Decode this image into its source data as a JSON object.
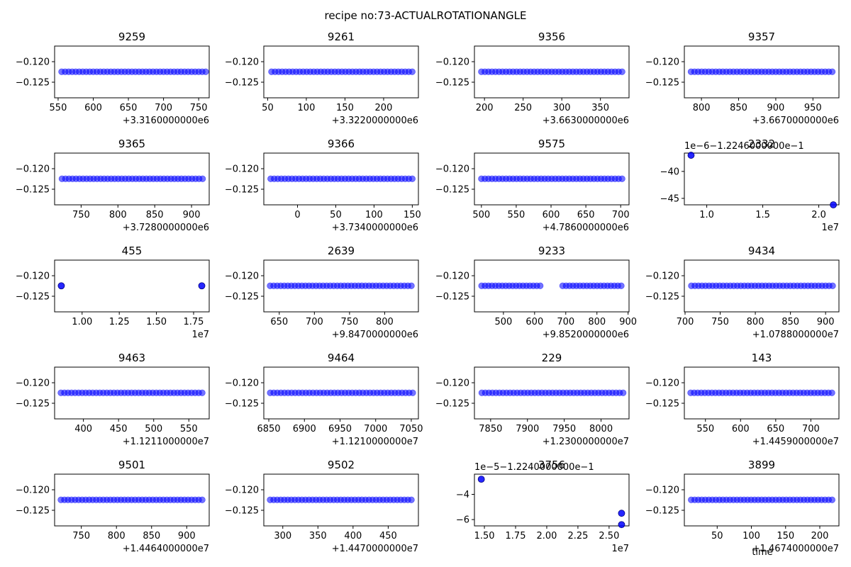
{
  "figure": {
    "title": "recipe no:73-ACTUALROTATIONANGLE",
    "marker_color": "#0000ff",
    "xlabel": "time"
  },
  "chart_data": [
    {
      "type": "scatter",
      "title": "9259",
      "x_offset": "+3.3160000000e6",
      "y_offset": "",
      "xticks": [
        550,
        600,
        650,
        700,
        750
      ],
      "xtick_labels": [
        "550",
        "600",
        "650",
        "700",
        "750"
      ],
      "xlim": [
        545,
        765
      ],
      "yticks": [
        -0.12,
        -0.125
      ],
      "ytick_labels": [
        "−0.120",
        "−0.125"
      ],
      "ylim": [
        -0.1288,
        -0.1162
      ],
      "segments": [
        [
          555,
          760
        ]
      ],
      "y": -0.12246,
      "points": []
    },
    {
      "type": "scatter",
      "title": "9261",
      "x_offset": "+3.3220000000e6",
      "xticks": [
        50,
        100,
        150,
        200
      ],
      "xtick_labels": [
        "50",
        "100",
        "150",
        "200"
      ],
      "xlim": [
        45,
        245
      ],
      "yticks": [
        -0.12,
        -0.125
      ],
      "ytick_labels": [
        "−0.120",
        "−0.125"
      ],
      "ylim": [
        -0.1288,
        -0.1162
      ],
      "segments": [
        [
          55,
          237
        ]
      ],
      "y": -0.12246,
      "points": []
    },
    {
      "type": "scatter",
      "title": "9356",
      "x_offset": "+3.6630000000e6",
      "xticks": [
        200,
        250,
        300,
        350
      ],
      "xtick_labels": [
        "200",
        "250",
        "300",
        "350"
      ],
      "xlim": [
        187,
        387
      ],
      "yticks": [
        -0.12,
        -0.125
      ],
      "ytick_labels": [
        "−0.120",
        "−0.125"
      ],
      "ylim": [
        -0.1288,
        -0.1162
      ],
      "segments": [
        [
          196,
          378
        ]
      ],
      "y": -0.12246,
      "points": []
    },
    {
      "type": "scatter",
      "title": "9357",
      "x_offset": "+3.6670000000e6",
      "xticks": [
        800,
        850,
        900,
        950
      ],
      "xtick_labels": [
        "800",
        "850",
        "900",
        "950"
      ],
      "xlim": [
        777,
        985
      ],
      "yticks": [
        -0.12,
        -0.125
      ],
      "ytick_labels": [
        "−0.120",
        "−0.125"
      ],
      "ylim": [
        -0.1288,
        -0.1162
      ],
      "segments": [
        [
          786,
          976
        ]
      ],
      "y": -0.12246,
      "points": []
    },
    {
      "type": "scatter",
      "title": "9365",
      "x_offset": "+3.7280000000e6",
      "xticks": [
        750,
        800,
        850,
        900
      ],
      "xtick_labels": [
        "750",
        "800",
        "850",
        "900"
      ],
      "xlim": [
        714,
        924
      ],
      "yticks": [
        -0.12,
        -0.125
      ],
      "ytick_labels": [
        "−0.120",
        "−0.125"
      ],
      "ylim": [
        -0.1288,
        -0.1162
      ],
      "segments": [
        [
          724,
          915
        ]
      ],
      "y": -0.12246,
      "points": []
    },
    {
      "type": "scatter",
      "title": "9366",
      "x_offset": "+3.7340000000e6",
      "xticks": [
        0,
        50,
        100,
        150
      ],
      "xtick_labels": [
        "0",
        "50",
        "100",
        "150"
      ],
      "xlim": [
        -44,
        158
      ],
      "yticks": [
        -0.12,
        -0.125
      ],
      "ytick_labels": [
        "−0.120",
        "−0.125"
      ],
      "ylim": [
        -0.1288,
        -0.1162
      ],
      "segments": [
        [
          -35,
          150
        ]
      ],
      "y": -0.12246,
      "points": []
    },
    {
      "type": "scatter",
      "title": "9575",
      "x_offset": "+4.7860000000e6",
      "xticks": [
        500,
        550,
        600,
        650,
        700
      ],
      "xtick_labels": [
        "500",
        "550",
        "600",
        "650",
        "700"
      ],
      "xlim": [
        490,
        712
      ],
      "yticks": [
        -0.12,
        -0.125
      ],
      "ytick_labels": [
        "−0.120",
        "−0.125"
      ],
      "ylim": [
        -0.1288,
        -0.1162
      ],
      "segments": [
        [
          500,
          702
        ]
      ],
      "y": -0.12246,
      "points": []
    },
    {
      "type": "scatter",
      "title": "2332",
      "x_offset": "1e7",
      "y_offset": "1e−6−1.2246000000e−1",
      "xticks": [
        1.0,
        1.5,
        2.0
      ],
      "xtick_labels": [
        "1.0",
        "1.5",
        "2.0"
      ],
      "xlim": [
        0.8,
        2.18
      ],
      "yticks": [
        -40,
        -45
      ],
      "ytick_labels": [
        "−40",
        "−45"
      ],
      "ylim": [
        -46.2,
        -36.6
      ],
      "segments": [],
      "points": [
        [
          0.86,
          -37.0
        ],
        [
          2.13,
          -46.2
        ]
      ]
    },
    {
      "type": "scatter",
      "title": "455",
      "x_offset": "1e7",
      "xticks": [
        1.0,
        1.25,
        1.5,
        1.75
      ],
      "xtick_labels": [
        "1.00",
        "1.25",
        "1.50",
        "1.75"
      ],
      "xlim": [
        0.815,
        1.855
      ],
      "yticks": [
        -0.12,
        -0.125
      ],
      "ytick_labels": [
        "−0.120",
        "−0.125"
      ],
      "ylim": [
        -0.1288,
        -0.1162
      ],
      "segments": [],
      "y": -0.12246,
      "points": [
        [
          0.86,
          -0.12246
        ],
        [
          1.805,
          -0.12246
        ]
      ]
    },
    {
      "type": "scatter",
      "title": "2639",
      "x_offset": "+9.8470000000e6",
      "xticks": [
        650,
        700,
        750,
        800
      ],
      "xtick_labels": [
        "650",
        "700",
        "750",
        "800"
      ],
      "xlim": [
        628,
        848
      ],
      "yticks": [
        -0.12,
        -0.125
      ],
      "ytick_labels": [
        "−0.120",
        "−0.125"
      ],
      "ylim": [
        -0.1288,
        -0.1162
      ],
      "segments": [
        [
          637,
          838
        ]
      ],
      "y": -0.12246,
      "points": []
    },
    {
      "type": "scatter",
      "title": "9233",
      "x_offset": "+9.8520000000e6",
      "xticks": [
        500,
        600,
        700,
        800,
        900
      ],
      "xtick_labels": [
        "500",
        "600",
        "700",
        "800",
        "900"
      ],
      "xlim": [
        407,
        903
      ],
      "yticks": [
        -0.12,
        -0.125
      ],
      "ytick_labels": [
        "−0.120",
        "−0.125"
      ],
      "ylim": [
        -0.1288,
        -0.1162
      ],
      "segments": [
        [
          430,
          618
        ],
        [
          690,
          878
        ]
      ],
      "y": -0.12246,
      "points": []
    },
    {
      "type": "scatter",
      "title": "9434",
      "x_offset": "+1.0788000000e7",
      "xticks": [
        700,
        750,
        800,
        850,
        900
      ],
      "xtick_labels": [
        "700",
        "750",
        "800",
        "850",
        "900"
      ],
      "xlim": [
        699,
        919
      ],
      "yticks": [
        -0.12,
        -0.125
      ],
      "ytick_labels": [
        "−0.120",
        "−0.125"
      ],
      "ylim": [
        -0.1288,
        -0.1162
      ],
      "segments": [
        [
          709,
          910
        ]
      ],
      "y": -0.12246,
      "points": []
    },
    {
      "type": "scatter",
      "title": "9463",
      "x_offset": "+1.1211000000e7",
      "xticks": [
        400,
        450,
        500,
        550
      ],
      "xtick_labels": [
        "400",
        "450",
        "500",
        "550"
      ],
      "xlim": [
        359,
        579
      ],
      "yticks": [
        -0.12,
        -0.125
      ],
      "ytick_labels": [
        "−0.120",
        "−0.125"
      ],
      "ylim": [
        -0.1288,
        -0.1162
      ],
      "segments": [
        [
          368,
          569
        ]
      ],
      "y": -0.12246,
      "points": []
    },
    {
      "type": "scatter",
      "title": "9464",
      "x_offset": "+1.1210000000e7",
      "xticks": [
        6850,
        6900,
        6950,
        7000,
        7050
      ],
      "xtick_labels": [
        "6850",
        "6900",
        "6950",
        "7000",
        "7050"
      ],
      "xlim": [
        6843,
        7060
      ],
      "yticks": [
        -0.12,
        -0.125
      ],
      "ytick_labels": [
        "−0.120",
        "−0.125"
      ],
      "ylim": [
        -0.1288,
        -0.1162
      ],
      "segments": [
        [
          6852,
          7052
        ]
      ],
      "y": -0.12246,
      "points": []
    },
    {
      "type": "scatter",
      "title": "229",
      "x_offset": "+1.2300000000e7",
      "xticks": [
        7850,
        7900,
        7950,
        8000
      ],
      "xtick_labels": [
        "7850",
        "7900",
        "7950",
        "8000"
      ],
      "xlim": [
        7828,
        8038
      ],
      "yticks": [
        -0.12,
        -0.125
      ],
      "ytick_labels": [
        "−0.120",
        "−0.125"
      ],
      "ylim": [
        -0.1288,
        -0.1162
      ],
      "segments": [
        [
          7838,
          8030
        ]
      ],
      "y": -0.12246,
      "points": []
    },
    {
      "type": "scatter",
      "title": "143",
      "x_offset": "+1.4459000000e7",
      "xticks": [
        550,
        600,
        650,
        700
      ],
      "xtick_labels": [
        "550",
        "600",
        "650",
        "700"
      ],
      "xlim": [
        520,
        740
      ],
      "yticks": [
        -0.12,
        -0.125
      ],
      "ytick_labels": [
        "−0.120",
        "−0.125"
      ],
      "ylim": [
        -0.1288,
        -0.1162
      ],
      "segments": [
        [
          529,
          730
        ]
      ],
      "y": -0.12246,
      "points": []
    },
    {
      "type": "scatter",
      "title": "9501",
      "x_offset": "+1.4464000000e7",
      "xticks": [
        750,
        800,
        850,
        900
      ],
      "xtick_labels": [
        "750",
        "800",
        "850",
        "900"
      ],
      "xlim": [
        712,
        932
      ],
      "yticks": [
        -0.12,
        -0.125
      ],
      "ytick_labels": [
        "−0.120",
        "−0.125"
      ],
      "ylim": [
        -0.1288,
        -0.1162
      ],
      "segments": [
        [
          721,
          922
        ]
      ],
      "y": -0.12246,
      "points": []
    },
    {
      "type": "scatter",
      "title": "9502",
      "x_offset": "+1.4470000000e7",
      "xticks": [
        300,
        350,
        400,
        450
      ],
      "xtick_labels": [
        "300",
        "350",
        "400",
        "450"
      ],
      "xlim": [
        273,
        493
      ],
      "yticks": [
        -0.12,
        -0.125
      ],
      "ytick_labels": [
        "−0.120",
        "−0.125"
      ],
      "ylim": [
        -0.1288,
        -0.1162
      ],
      "segments": [
        [
          282,
          483
        ]
      ],
      "y": -0.12246,
      "points": []
    },
    {
      "type": "scatter",
      "title": "3756",
      "x_offset": "1e7",
      "y_offset": "1e−5−1.2240000000e−1",
      "xticks": [
        1.5,
        1.75,
        2.0,
        2.25,
        2.5
      ],
      "xtick_labels": [
        "1.50",
        "1.75",
        "2.00",
        "2.25",
        "2.50"
      ],
      "xlim": [
        1.42,
        2.66
      ],
      "yticks": [
        -4,
        -6
      ],
      "ytick_labels": [
        "−4",
        "−6"
      ],
      "ylim": [
        -6.5,
        -2.4
      ],
      "segments": [],
      "points": [
        [
          1.475,
          -2.8
        ],
        [
          2.6,
          -5.5
        ],
        [
          2.6,
          -6.4
        ]
      ]
    },
    {
      "type": "scatter",
      "title": "3899",
      "x_offset": "+1.4674000000e7",
      "xticks": [
        50,
        100,
        150,
        200
      ],
      "xtick_labels": [
        "50",
        "100",
        "150",
        "200"
      ],
      "xlim": [
        2,
        228
      ],
      "yticks": [
        -0.12,
        -0.125
      ],
      "ytick_labels": [
        "−0.120",
        "−0.125"
      ],
      "ylim": [
        -0.1288,
        -0.1162
      ],
      "segments": [
        [
          12,
          218
        ]
      ],
      "y": -0.12246,
      "points": []
    }
  ]
}
